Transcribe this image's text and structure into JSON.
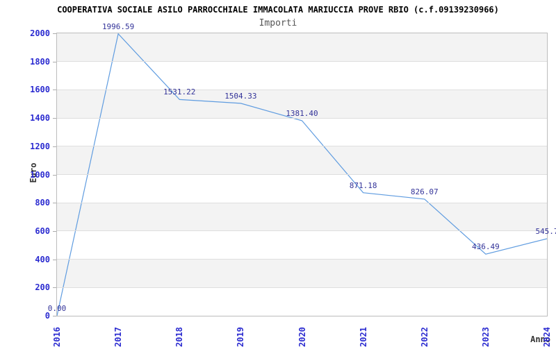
{
  "chart_data": {
    "type": "line",
    "title": "COOPERATIVA SOCIALE ASILO PARROCCHIALE IMMACOLATA MARIUCCIA PROVE RBIO (c.f.09139230966)",
    "subtitle": "Importi",
    "xlabel": "Anno",
    "ylabel": "Euro",
    "x": [
      2016,
      2017,
      2018,
      2019,
      2020,
      2021,
      2022,
      2023,
      2024
    ],
    "values": [
      0.0,
      1996.59,
      1531.22,
      1504.33,
      1381.4,
      871.18,
      826.07,
      436.49,
      545.7
    ],
    "point_labels": [
      "0.00",
      "1996.59",
      "1531.22",
      "1504.33",
      "1381.40",
      "871.18",
      "826.07",
      "436.49",
      "545.7"
    ],
    "ylim": [
      0,
      2000
    ],
    "y_ticks": [
      0,
      200,
      400,
      600,
      800,
      1000,
      1200,
      1400,
      1600,
      1800,
      2000
    ],
    "grid": "horizontal-bands",
    "legend": "none",
    "colors": {
      "line": "#5f9ce0",
      "axis_tick_label": "#2b2bd0",
      "point_label": "#333399",
      "band_grey": "#f3f3f3",
      "gridline": "#dedede",
      "plot_border": "#bcbcbc",
      "title": "#000000",
      "subtitle": "#555555",
      "axis_title": "#333333"
    }
  }
}
